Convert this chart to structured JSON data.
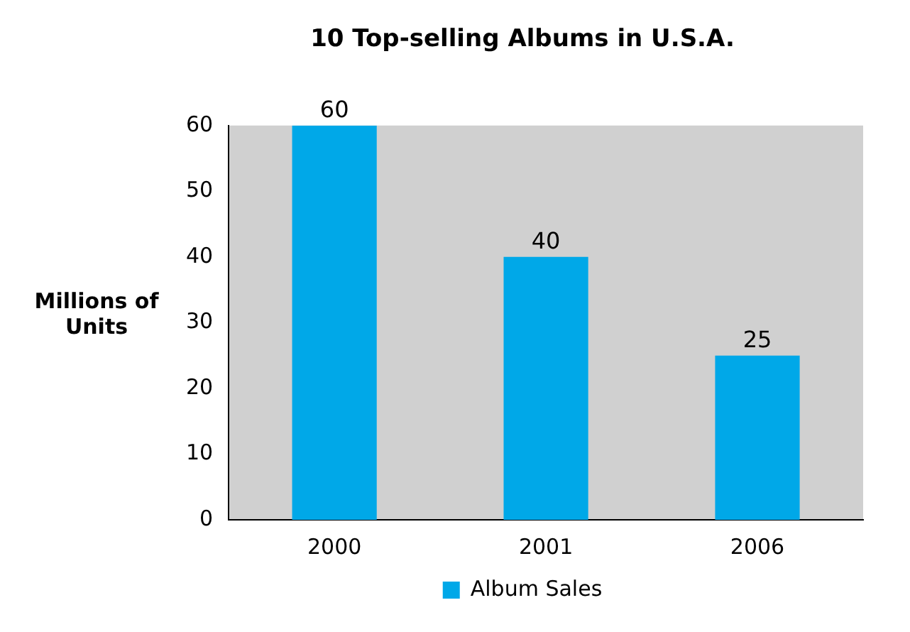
{
  "chart_data": {
    "type": "bar",
    "title": "10 Top-selling Albums in U.S.A.",
    "ylabel": "Millions of Units",
    "categories": [
      "2000",
      "2001",
      "2006"
    ],
    "series": [
      {
        "name": "Album Sales",
        "color": "#00a8e8",
        "values": [
          60,
          40,
          25
        ]
      }
    ],
    "ylim": [
      0,
      60
    ],
    "yticks": [
      0,
      10,
      20,
      30,
      40,
      50,
      60
    ],
    "grid": false,
    "legend": "bottom",
    "data_labels": true
  }
}
